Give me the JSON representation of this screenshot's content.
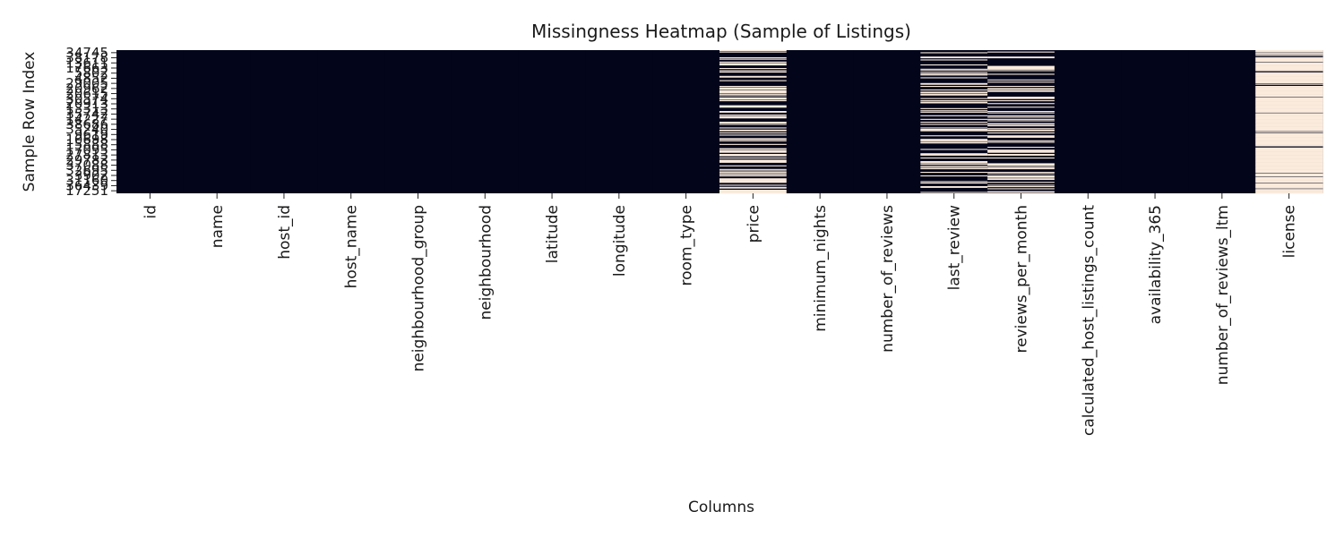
{
  "chart_data": {
    "type": "heatmap",
    "title": "Missingness Heatmap (Sample of Listings)",
    "xlabel": "Columns",
    "ylabel": "Sample Row Index",
    "present_color": "#03051a",
    "missing_color": "#faebdd",
    "columns": [
      {
        "name": "id",
        "missing_fraction": 0.0
      },
      {
        "name": "name",
        "missing_fraction": 0.0
      },
      {
        "name": "host_id",
        "missing_fraction": 0.0
      },
      {
        "name": "host_name",
        "missing_fraction": 0.0
      },
      {
        "name": "neighbourhood_group",
        "missing_fraction": 0.0
      },
      {
        "name": "neighbourhood",
        "missing_fraction": 0.0
      },
      {
        "name": "latitude",
        "missing_fraction": 0.0
      },
      {
        "name": "longitude",
        "missing_fraction": 0.0
      },
      {
        "name": "room_type",
        "missing_fraction": 0.0
      },
      {
        "name": "price",
        "missing_fraction": 0.4
      },
      {
        "name": "minimum_nights",
        "missing_fraction": 0.0
      },
      {
        "name": "number_of_reviews",
        "missing_fraction": 0.0
      },
      {
        "name": "last_review",
        "missing_fraction": 0.3
      },
      {
        "name": "reviews_per_month",
        "missing_fraction": 0.3
      },
      {
        "name": "calculated_host_listings_count",
        "missing_fraction": 0.0
      },
      {
        "name": "availability_365",
        "missing_fraction": 0.0
      },
      {
        "name": "number_of_reviews_ltm",
        "missing_fraction": 0.0
      },
      {
        "name": "license",
        "missing_fraction": 0.85
      }
    ],
    "row_tick_labels": [
      "34745",
      "38178",
      "13611",
      "17663",
      "5802",
      "4852",
      "29005",
      "20962",
      "20615",
      "30574",
      "20913",
      "13313",
      "35742",
      "14227",
      "38686",
      "35240",
      "9619",
      "10698",
      "15888",
      "17095",
      "27813",
      "29783",
      "37088",
      "32695",
      "3902",
      "31160",
      "36439",
      "17251"
    ]
  }
}
